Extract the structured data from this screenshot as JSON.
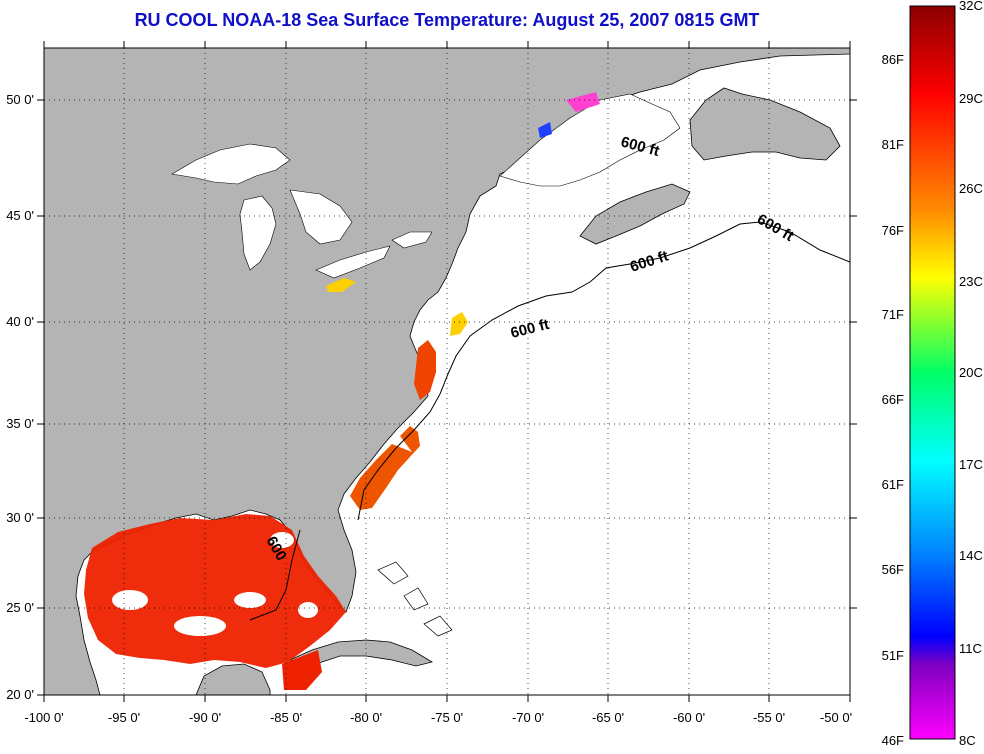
{
  "title": "RU COOL  NOAA-18  Sea Surface Temperature:  August 25, 2007 0815 GMT",
  "x_ticks": [
    "-100 0'",
    "-95 0'",
    "-90 0'",
    "-85 0'",
    "-80 0'",
    "-75 0'",
    "-70 0'",
    "-65 0'",
    "-60 0'",
    "-55 0'",
    "-50 0'"
  ],
  "y_ticks": [
    "50 0'",
    "45 0'",
    "40 0'",
    "35 0'",
    "30 0'",
    "25 0'",
    "20 0'"
  ],
  "contour_labels": [
    "600 ft",
    "600 ft",
    "600 ft",
    "600 ft",
    "600"
  ],
  "colorbar": {
    "celsius_labels": [
      "32C",
      "29C",
      "26C",
      "23C",
      "20C",
      "17C",
      "14C",
      "11C",
      "8C"
    ],
    "fahrenheit_labels": [
      "86F",
      "81F",
      "76F",
      "71F",
      "66F",
      "61F",
      "56F",
      "51F",
      "46F"
    ],
    "colors": [
      "#8b0000",
      "#ff0000",
      "#ff8c00",
      "#ffff00",
      "#00ff66",
      "#00ffff",
      "#0080ff",
      "#0000ff",
      "#8000c0",
      "#ff00ff"
    ]
  },
  "colors": {
    "land": "#b4b4b4",
    "ocean": "#ffffff",
    "title": "#1010c8",
    "sst_hot": "#ee2200"
  }
}
